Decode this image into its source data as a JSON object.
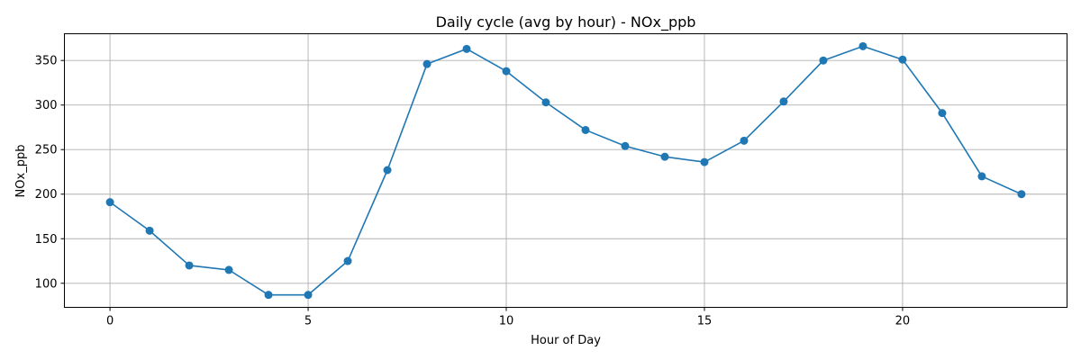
{
  "chart_data": {
    "type": "line",
    "title": "Daily cycle (avg by hour) - NOx_ppb",
    "xlabel": "Hour of Day",
    "ylabel": "NOx_ppb",
    "x": [
      0,
      1,
      2,
      3,
      4,
      5,
      6,
      7,
      8,
      9,
      10,
      11,
      12,
      13,
      14,
      15,
      16,
      17,
      18,
      19,
      20,
      21,
      22,
      23
    ],
    "series": [
      {
        "values": [
          191,
          159,
          120,
          115,
          87,
          87,
          125,
          227,
          346,
          363,
          338,
          303,
          272,
          254,
          242,
          236,
          260,
          304,
          350,
          366,
          351,
          291,
          220,
          200
        ],
        "color": "#1f77b4",
        "marker": "circle"
      }
    ],
    "xlim": [
      -1.15,
      24.15
    ],
    "ylim": [
      73,
      380
    ],
    "xticks": [
      0,
      5,
      10,
      15,
      20
    ],
    "xtick_labels": [
      "0",
      "5",
      "10",
      "15",
      "20"
    ],
    "yticks": [
      100,
      150,
      200,
      250,
      300,
      350
    ],
    "ytick_labels": [
      "100",
      "150",
      "200",
      "250",
      "300",
      "350"
    ],
    "grid": true,
    "legend": "none"
  }
}
